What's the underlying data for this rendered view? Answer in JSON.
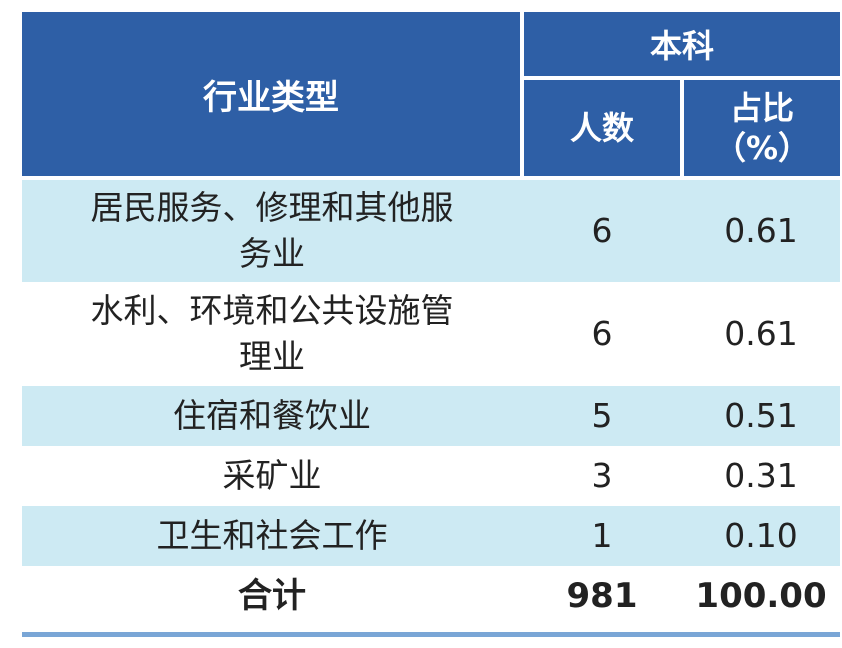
{
  "table": {
    "header": {
      "industry": "行业类型",
      "group": "本科",
      "count": "人数",
      "percent_line1": "占比",
      "percent_line2": "（%）"
    },
    "rows": [
      {
        "type_line1": "居民服务、修理和其他服",
        "type_line2": "务业",
        "count": "6",
        "percent": "0.61"
      },
      {
        "type_line1": "水利、环境和公共设施管",
        "type_line2": "理业",
        "count": "6",
        "percent": "0.61"
      },
      {
        "type_line1": "住宿和餐饮业",
        "count": "5",
        "percent": "0.51"
      },
      {
        "type_line1": "采矿业",
        "count": "3",
        "percent": "0.31"
      },
      {
        "type_line1": "卫生和社会工作",
        "count": "1",
        "percent": "0.10"
      }
    ],
    "total": {
      "label": "合计",
      "count": "981",
      "percent": "100.00"
    }
  }
}
